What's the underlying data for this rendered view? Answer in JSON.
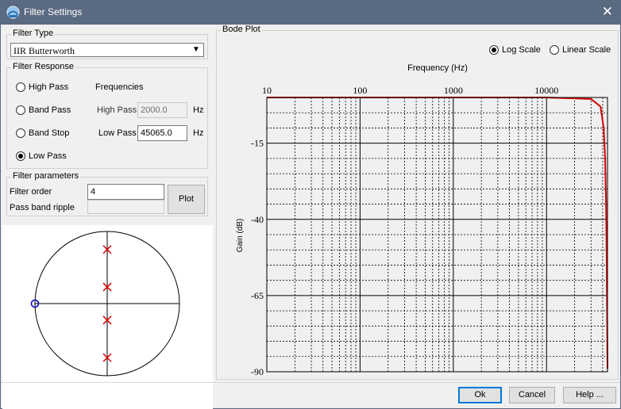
{
  "window": {
    "title": "Filter Settings"
  },
  "filter_type": {
    "label": "Filter Type",
    "selected": "IIR Butterworth"
  },
  "filter_response": {
    "label": "Filter Response",
    "options": [
      "High Pass",
      "Band Pass",
      "Band Stop",
      "Low Pass"
    ],
    "selected": "Low Pass",
    "frequencies_label": "Frequencies",
    "high_pass_label": "High Pass",
    "high_pass_value": "2000.0",
    "low_pass_label": "Low Pass",
    "low_pass_value": "45065.0",
    "unit": "Hz"
  },
  "filter_parameters": {
    "label": "Filter parameters",
    "order_label": "Filter order",
    "order_value": "4",
    "ripple_label": "Pass band ripple",
    "ripple_value": "",
    "plot_button": "Plot"
  },
  "bode": {
    "group_label": "Bode Plot",
    "scale_log": "Log Scale",
    "scale_linear": "Linear Scale",
    "scale_selected": "Log Scale",
    "xlabel": "Frequency (Hz)",
    "ylabel": "Gain (dB)",
    "x_ticks": [
      "10",
      "100",
      "1000",
      "10000"
    ],
    "y_ticks": [
      "-15",
      "-40",
      "-65",
      "-90"
    ],
    "curve_color": "#d40000"
  },
  "pole_zero": {
    "pole_color": "#e00000",
    "zero_color": "#0000c0",
    "poles": [
      [
        0,
        0.75
      ],
      [
        0,
        0.23
      ],
      [
        0,
        -0.23
      ],
      [
        0,
        -0.75
      ]
    ],
    "zeros": [
      [
        -1,
        0
      ]
    ]
  },
  "chart_data": {
    "type": "line",
    "title": "",
    "xlabel": "Frequency (Hz)",
    "ylabel": "Gain (dB)",
    "xscale": "log",
    "xlim": [
      10,
      45065
    ],
    "ylim": [
      -90,
      0
    ],
    "grid": true,
    "series": [
      {
        "x": [
          10,
          100,
          1000,
          10000,
          30000,
          38000,
          41000,
          42500,
          43500,
          44200,
          44700,
          45065
        ],
        "y": [
          0,
          0,
          0,
          0,
          -0.5,
          -3,
          -10,
          -20,
          -35,
          -55,
          -75,
          -89
        ]
      }
    ]
  },
  "buttons": {
    "ok": "Ok",
    "cancel": "Cancel",
    "help": "Help ..."
  }
}
